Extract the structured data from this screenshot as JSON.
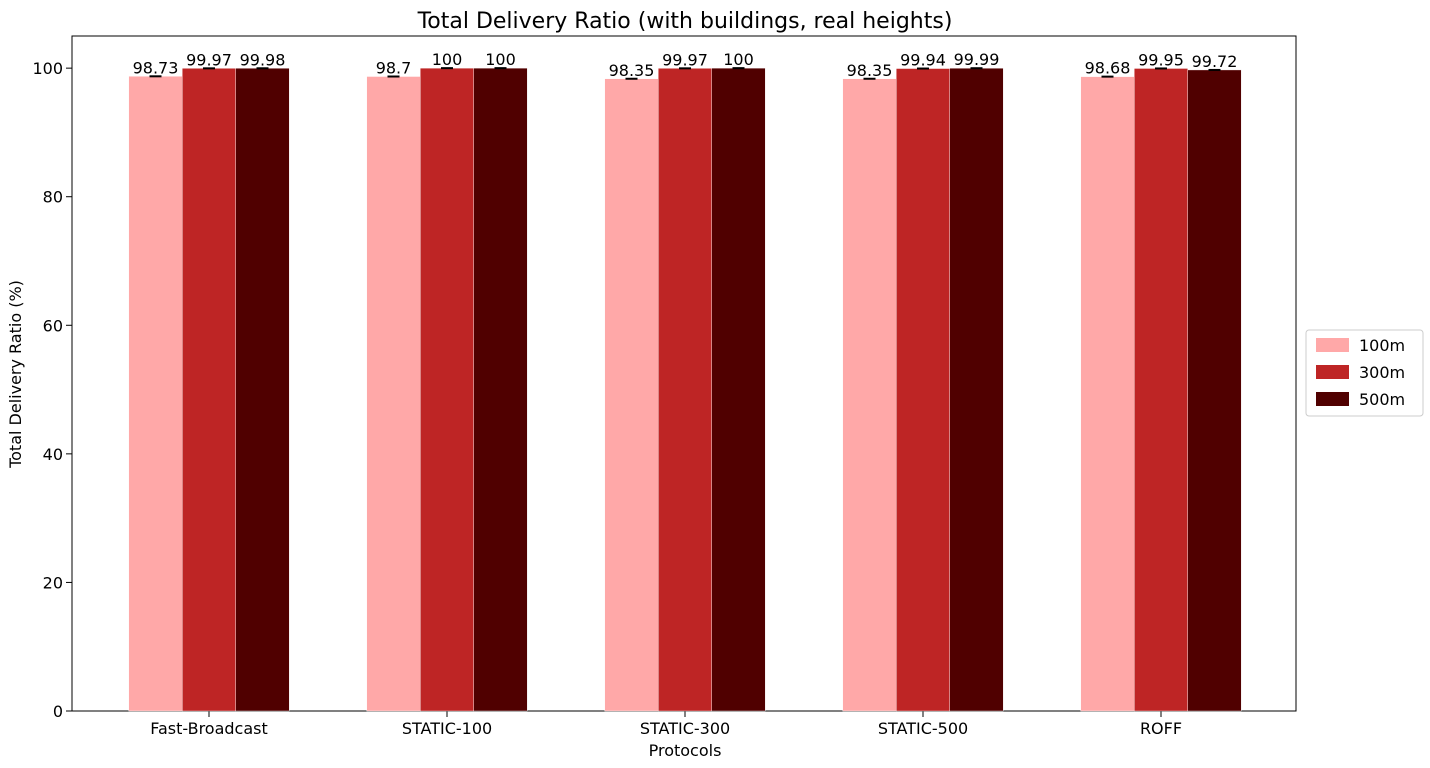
{
  "chart_data": {
    "type": "bar",
    "title": "Total Delivery Ratio (with buildings, real heights)",
    "xlabel": "Protocols",
    "ylabel": "Total Delivery Ratio (%)",
    "categories": [
      "Fast-Broadcast",
      "STATIC-100",
      "STATIC-300",
      "STATIC-500",
      "ROFF"
    ],
    "ylim": [
      0,
      105
    ],
    "yticks": [
      0,
      20,
      40,
      60,
      80,
      100
    ],
    "grid": false,
    "legend_position": "center-right",
    "series": [
      {
        "name": "100m",
        "color": "#ffa8a8",
        "values": [
          98.73,
          98.7,
          98.35,
          98.35,
          98.68
        ],
        "labels": [
          "98.73",
          "98.7",
          "98.35",
          "98.35",
          "98.68"
        ]
      },
      {
        "name": "300m",
        "color": "#be2525",
        "values": [
          99.97,
          100,
          99.97,
          99.94,
          99.95
        ],
        "labels": [
          "99.97",
          "100",
          "99.97",
          "99.94",
          "99.95"
        ]
      },
      {
        "name": "500m",
        "color": "#500000",
        "values": [
          99.98,
          100,
          100,
          99.99,
          99.72
        ],
        "labels": [
          "99.98",
          "100",
          "100",
          "99.99",
          "99.72"
        ]
      }
    ]
  }
}
